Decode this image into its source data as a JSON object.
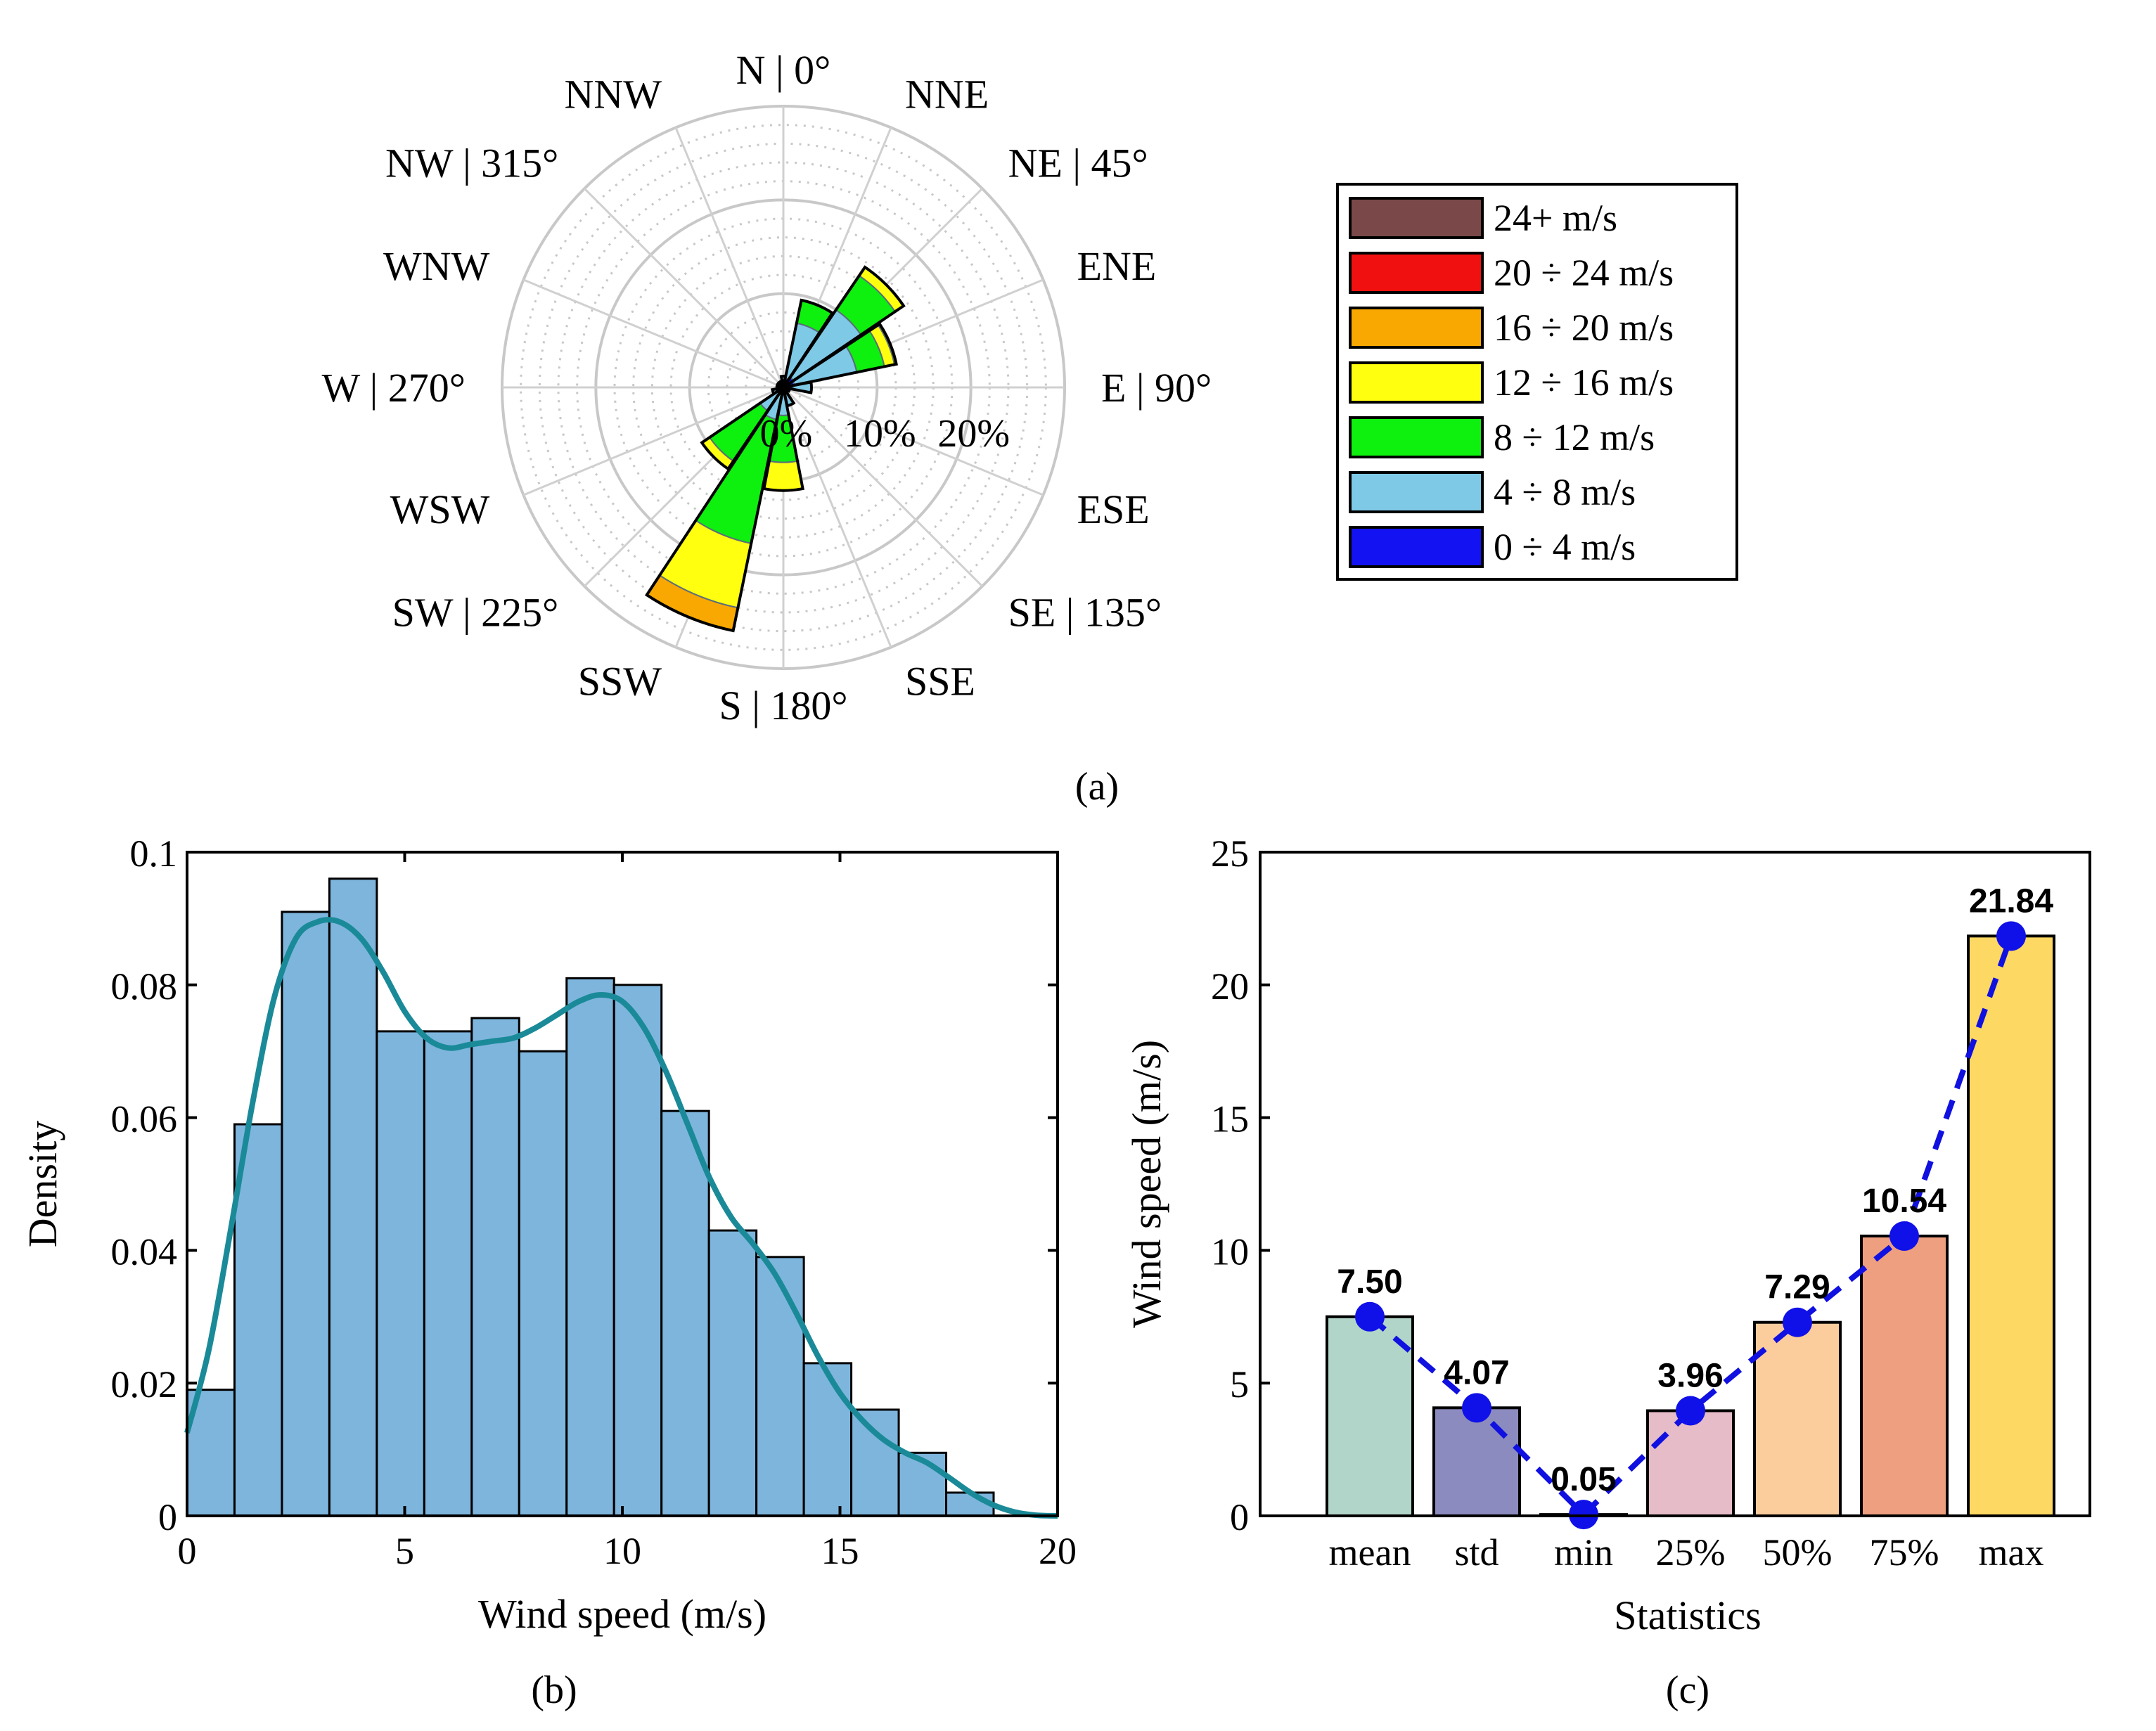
{
  "chart_data": [
    {
      "type": "windrose",
      "panel_label": "(a)",
      "directions": [
        {
          "label": "N | 0°",
          "angle": 0
        },
        {
          "label": "NNE",
          "angle": 22.5
        },
        {
          "label": "NE | 45°",
          "angle": 45
        },
        {
          "label": "ENE",
          "angle": 67.5
        },
        {
          "label": "E | 90°",
          "angle": 90
        },
        {
          "label": "ESE",
          "angle": 112.5
        },
        {
          "label": "SE | 135°",
          "angle": 135
        },
        {
          "label": "SSE",
          "angle": 157.5
        },
        {
          "label": "S | 180°",
          "angle": 180
        },
        {
          "label": "SSW",
          "angle": 202.5
        },
        {
          "label": "SW | 225°",
          "angle": 225
        },
        {
          "label": "WSW",
          "angle": 247.5
        },
        {
          "label": "W | 270°",
          "angle": 270
        },
        {
          "label": "WNW",
          "angle": 292.5
        },
        {
          "label": "NW | 315°",
          "angle": 315
        },
        {
          "label": "NNW",
          "angle": 337.5
        }
      ],
      "radial_labels": [
        {
          "label": "0%",
          "value": 0
        },
        {
          "label": "10%",
          "value": 10
        },
        {
          "label": "20%",
          "value": 20
        }
      ],
      "rmax": 30,
      "bins": [
        {
          "name": "0 ÷ 4 m/s",
          "color": "#1212f2"
        },
        {
          "name": "4 ÷ 8 m/s",
          "color": "#7ec9e6"
        },
        {
          "name": "8 ÷ 12 m/s",
          "color": "#0ef00e"
        },
        {
          "name": "12 ÷ 16 m/s",
          "color": "#ffff0f"
        },
        {
          "name": "16 ÷ 20 m/s",
          "color": "#f8a800"
        },
        {
          "name": "20 ÷ 24 m/s",
          "color": "#f01010"
        },
        {
          "name": "24+ m/s",
          "color": "#7a4848"
        }
      ],
      "legend_order": [
        "24+ m/s",
        "20 ÷ 24 m/s",
        "16 ÷ 20 m/s",
        "12 ÷ 16 m/s",
        "8 ÷ 12 m/s",
        "4 ÷ 8 m/s",
        "0 ÷ 4 m/s"
      ],
      "cumulative": [
        [
          0.4,
          1.2,
          1.2,
          1.2,
          1.2,
          1.2,
          1.2
        ],
        [
          1.0,
          7.0,
          9.5,
          9.5,
          9.5,
          9.5,
          9.5
        ],
        [
          1.3,
          10.0,
          14.4,
          15.5,
          15.5,
          15.5,
          15.5
        ],
        [
          1.2,
          8.0,
          11.0,
          12.1,
          12.3,
          12.3,
          12.3
        ],
        [
          1.0,
          3.0,
          3.0,
          3.0,
          3.0,
          3.0,
          3.0
        ],
        [
          0.7,
          0.7,
          0.7,
          0.7,
          0.7,
          0.7,
          0.7
        ],
        [
          0.4,
          0.4,
          0.4,
          0.4,
          0.4,
          0.4,
          0.4
        ],
        [
          0.5,
          2.0,
          2.0,
          2.0,
          2.0,
          2.0,
          2.0
        ],
        [
          0.5,
          3.0,
          8.0,
          11.0,
          11.0,
          11.0,
          11.0
        ],
        [
          0.8,
          3.5,
          17.0,
          24.0,
          26.5,
          26.5,
          26.5
        ],
        [
          0.6,
          3.0,
          9.5,
          10.5,
          10.5,
          10.5,
          10.5
        ],
        [
          0.4,
          1.2,
          1.2,
          1.2,
          1.2,
          1.2,
          1.2
        ],
        [
          0.3,
          0.6,
          0.6,
          0.6,
          0.6,
          0.6,
          0.6
        ],
        [
          0.3,
          0.7,
          0.7,
          0.7,
          0.7,
          0.7,
          0.7
        ],
        [
          0.3,
          0.6,
          0.6,
          0.6,
          0.6,
          0.6,
          0.6
        ],
        [
          0.3,
          0.7,
          0.7,
          0.7,
          0.7,
          0.7,
          0.7
        ]
      ]
    },
    {
      "type": "histogram",
      "panel_label": "(b)",
      "xlabel": "Wind speed (m/s)",
      "ylabel": "Density",
      "xlim": [
        0,
        20
      ],
      "ylim": [
        0,
        0.1
      ],
      "xticks": [
        0,
        5,
        10,
        15,
        20
      ],
      "xtick_labels": [
        "0",
        "5",
        "10",
        "15",
        "20"
      ],
      "yticks": [
        0,
        0.02,
        0.04,
        0.06,
        0.08,
        0.1
      ],
      "ytick_labels": [
        "0",
        "0.02",
        "0.04",
        "0.06",
        "0.08",
        "0.1"
      ],
      "bin_width": 1.09,
      "bin_starts": [
        0,
        1.09,
        2.18,
        3.27,
        4.36,
        5.45,
        6.54,
        7.63,
        8.72,
        9.81,
        10.9,
        11.99,
        13.08,
        14.17,
        15.26,
        16.35,
        17.44
      ],
      "densities": [
        0.019,
        0.059,
        0.091,
        0.096,
        0.073,
        0.073,
        0.075,
        0.07,
        0.081,
        0.08,
        0.061,
        0.043,
        0.039,
        0.023,
        0.016,
        0.0095,
        0.0035
      ],
      "bar_color": "#7eb5dd",
      "kde_color": "#1a8a98",
      "kde_x": [
        0,
        0.5,
        1,
        1.5,
        2,
        2.5,
        3,
        3.5,
        4,
        4.5,
        5,
        5.5,
        6,
        6.5,
        7,
        7.5,
        8,
        8.5,
        9,
        9.5,
        10,
        10.5,
        11,
        11.5,
        12,
        12.5,
        13,
        13.5,
        14,
        14.5,
        15,
        15.5,
        16,
        16.5,
        17,
        17.5,
        18,
        18.5,
        19,
        19.5,
        20
      ],
      "kde_y": [
        0.0125,
        0.025,
        0.043,
        0.062,
        0.078,
        0.087,
        0.0895,
        0.0895,
        0.087,
        0.082,
        0.076,
        0.072,
        0.0705,
        0.071,
        0.0715,
        0.072,
        0.0735,
        0.0755,
        0.0775,
        0.0785,
        0.0775,
        0.0735,
        0.067,
        0.059,
        0.051,
        0.045,
        0.041,
        0.0365,
        0.0305,
        0.024,
        0.0185,
        0.0145,
        0.0115,
        0.0095,
        0.008,
        0.0058,
        0.0035,
        0.0017,
        0.0006,
        0.0001,
        0.0
      ]
    },
    {
      "type": "bar",
      "panel_label": "(c)",
      "xlabel": "Statistics",
      "ylabel": "Wind speed (m/s)",
      "ylim": [
        0,
        25
      ],
      "yticks": [
        0,
        5,
        10,
        15,
        20,
        25
      ],
      "ytick_labels": [
        "0",
        "5",
        "10",
        "15",
        "20",
        "25"
      ],
      "categories": [
        "mean",
        "std",
        "min",
        "25%",
        "50%",
        "75%",
        "max"
      ],
      "values": [
        7.5,
        4.07,
        0.05,
        3.96,
        7.29,
        10.54,
        21.84
      ],
      "value_labels": [
        "7.50",
        "4.07",
        "0.05",
        "3.96",
        "7.29",
        "10.54",
        "21.84"
      ],
      "bar_colors": [
        "#b1d5c8",
        "#8b8bbf",
        "#9ec3c8",
        "#e5bcc8",
        "#fbcc9c",
        "#ee9f7f",
        "#fdd862"
      ],
      "line_color": "#1010e0",
      "marker_color": "#1010e8"
    }
  ]
}
